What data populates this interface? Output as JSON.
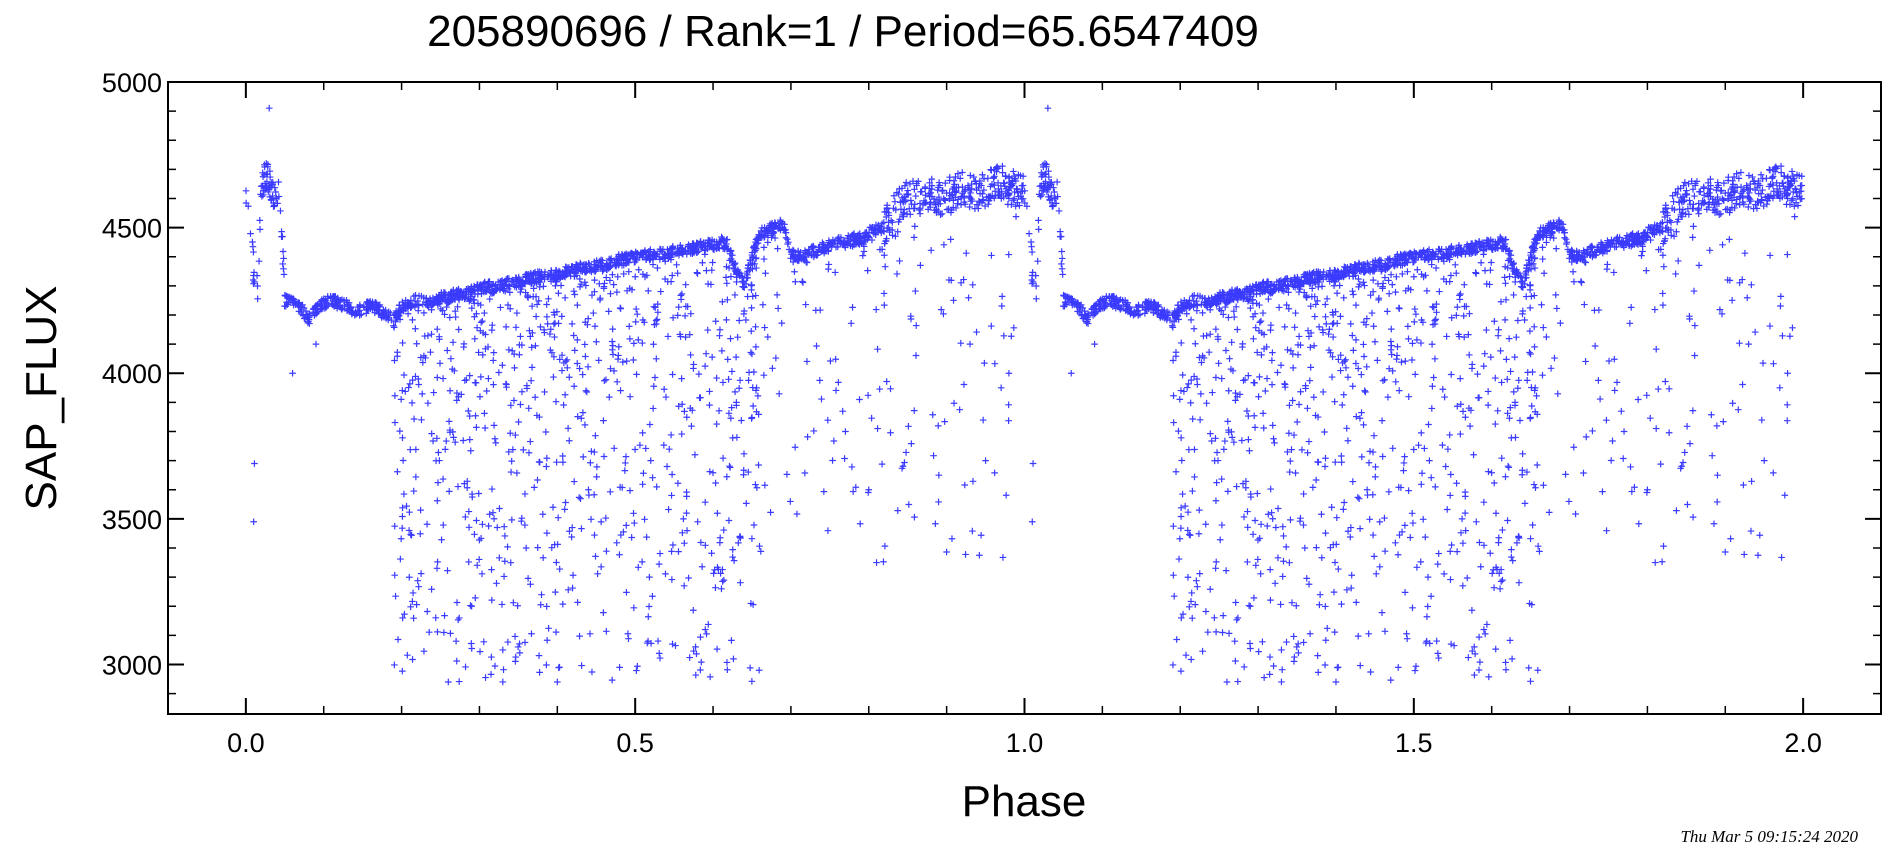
{
  "chart_data": {
    "type": "scatter",
    "title": "205890696 / Rank=1 / Period=65.6547409",
    "xlabel": "Phase",
    "ylabel": "SAP_FLUX",
    "xlim": [
      -0.1,
      2.1
    ],
    "ylim": [
      2830,
      5000
    ],
    "xticks": [
      0.0,
      0.5,
      1.0,
      1.5,
      2.0
    ],
    "xtick_labels": [
      "0.0",
      "0.5",
      "1.0",
      "1.5",
      "2.0"
    ],
    "yticks": [
      3000,
      3500,
      4000,
      4500,
      5000
    ],
    "ytick_labels": [
      "3000",
      "3500",
      "4000",
      "4500",
      "5000"
    ],
    "grid": false,
    "legend": "none",
    "marker": "plus",
    "color": "#3b3bff",
    "series": [
      {
        "x": [
          0.0,
          0.005,
          0.01,
          0.015,
          0.02,
          0.025,
          0.03,
          0.035,
          0.04,
          0.045,
          0.05,
          0.06,
          0.07,
          0.08,
          0.09,
          0.1,
          0.11,
          0.12,
          0.13,
          0.14,
          0.15,
          0.16,
          0.17,
          0.18,
          0.19,
          0.2,
          0.21,
          0.22,
          0.23,
          0.24,
          0.25,
          0.26,
          0.27,
          0.28,
          0.29,
          0.3,
          0.31,
          0.32,
          0.33,
          0.34,
          0.35,
          0.36,
          0.37,
          0.38,
          0.39,
          0.4,
          0.41,
          0.42,
          0.43,
          0.44,
          0.45,
          0.46,
          0.47,
          0.48,
          0.49,
          0.5,
          0.51,
          0.52,
          0.53,
          0.54,
          0.55,
          0.56,
          0.57,
          0.58,
          0.59,
          0.6,
          0.61,
          0.62,
          0.63,
          0.64,
          0.65,
          0.66,
          0.67,
          0.68,
          0.69,
          0.7,
          0.71,
          0.72,
          0.73,
          0.74,
          0.75,
          0.76,
          0.77,
          0.78,
          0.79,
          0.8,
          0.81,
          0.82,
          0.83,
          0.84,
          0.85,
          0.86,
          0.87,
          0.88,
          0.89,
          0.9,
          0.91,
          0.92,
          0.93,
          0.94,
          0.95,
          0.96,
          0.97,
          0.98,
          0.99,
          1.0,
          0.03,
          0.26,
          0.27,
          0.4,
          0.48,
          0.59,
          0.81,
          0.01,
          0.011,
          0.06,
          0.09,
          0.29,
          0.33,
          0.36,
          0.44,
          0.52,
          0.63,
          0.77,
          0.8,
          0.89,
          0.93,
          0.95,
          0.97,
          0.98
        ],
        "y": [
          4620,
          4480,
          4360,
          4290,
          4640,
          4680,
          4650,
          4630,
          4610,
          4580,
          4250,
          4240,
          4230,
          4180,
          4220,
          4240,
          4250,
          4240,
          4230,
          4210,
          4220,
          4230,
          4220,
          4200,
          4180,
          4230,
          4240,
          4250,
          4250,
          4240,
          4260,
          4260,
          4270,
          4270,
          4280,
          4290,
          4300,
          4290,
          4300,
          4310,
          4310,
          4320,
          4330,
          4330,
          4340,
          4340,
          4350,
          4350,
          4360,
          4360,
          4370,
          4370,
          4380,
          4390,
          4390,
          4400,
          4400,
          4410,
          4410,
          4410,
          4420,
          4420,
          4430,
          4430,
          4440,
          4440,
          4450,
          4440,
          4350,
          4300,
          4400,
          4480,
          4490,
          4500,
          4510,
          4420,
          4400,
          4410,
          4420,
          4430,
          4440,
          4450,
          4450,
          4460,
          4460,
          4480,
          4490,
          4500,
          4550,
          4580,
          4600,
          4600,
          4610,
          4620,
          4600,
          4610,
          4620,
          4640,
          4630,
          4620,
          4630,
          4650,
          4660,
          4640,
          4630,
          4620,
          4910,
          2940,
          3080,
          2940,
          2990,
          3120,
          3350,
          3490,
          3690,
          4000,
          4100,
          3200,
          3050,
          3400,
          3600,
          3700,
          3900,
          3800,
          3600,
          3650,
          4100,
          3700,
          3950,
          4000
        ],
        "scatter_cloud": [
          {
            "x": [
              0.19,
              0.66
            ],
            "y": [
              2940,
              4440
            ],
            "note": "downward scatter below the main locus"
          },
          {
            "x": [
              0.66,
              0.99
            ],
            "y": [
              3350,
              4700
            ],
            "note": "scatter below the rising branch"
          }
        ]
      }
    ]
  },
  "timestamp": "Thu Mar  5 09:15:24 2020"
}
